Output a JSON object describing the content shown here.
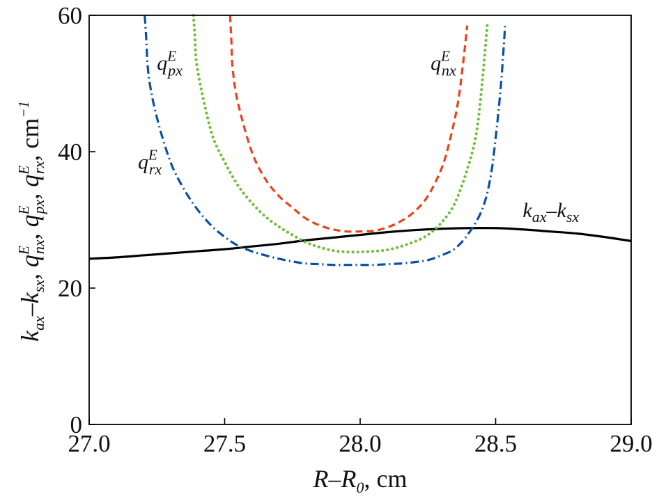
{
  "chart_data": {
    "type": "line",
    "title": "",
    "xlabel": "R–R0, cm",
    "xlabel_parts": {
      "var": "R",
      "dash": "–",
      "var2": "R",
      "sub2": "0",
      "unit": ", cm"
    },
    "ylabel": "kax–ksx, qEnx, qEpx, qErx, cm−1",
    "ylabel_parts": {
      "k1": "k",
      "s1": "ax",
      "dash": "–",
      "k2": "k",
      "s2": "sx",
      "q": "q",
      "sep": ", ",
      "E": "E",
      "s3": "nx",
      "s4": "px",
      "s5": "rx",
      "unit": "cm",
      "exp": "−1"
    },
    "xlim": [
      27.0,
      29.0
    ],
    "ylim": [
      0,
      60
    ],
    "x_ticks": [
      "27.0",
      "27.5",
      "28.0",
      "28.5",
      "29.0"
    ],
    "y_ticks": [
      "0",
      "20",
      "40",
      "60"
    ],
    "grid": false,
    "series": [
      {
        "name": "kax–ksx",
        "color": "#000000",
        "style": "solid",
        "x": [
          27.0,
          27.1,
          27.2,
          27.3,
          27.4,
          27.5,
          27.6,
          27.7,
          27.8,
          27.9,
          28.0,
          28.1,
          28.2,
          28.3,
          28.4,
          28.5,
          28.6,
          28.7,
          28.8,
          28.9,
          29.0
        ],
        "y": [
          24.3,
          24.5,
          24.8,
          25.1,
          25.4,
          25.7,
          26.1,
          26.5,
          27.0,
          27.4,
          27.8,
          28.2,
          28.5,
          28.7,
          28.8,
          28.8,
          28.6,
          28.3,
          28.0,
          27.5,
          26.9
        ]
      },
      {
        "name": "qEnx",
        "color": "#e8431c",
        "style": "dashed",
        "x": [
          27.52,
          27.525,
          27.53,
          27.55,
          27.6,
          27.65,
          27.7,
          27.75,
          27.8,
          27.85,
          27.9,
          27.95,
          28.0,
          28.05,
          28.1,
          28.15,
          28.2,
          28.25,
          28.3,
          28.33,
          28.36,
          28.38,
          28.395
        ],
        "y": [
          60,
          56,
          52,
          47,
          40,
          36,
          33.5,
          31.8,
          30.2,
          29.2,
          28.6,
          28.3,
          28.3,
          28.4,
          28.9,
          29.8,
          31.2,
          33.5,
          37.5,
          41.5,
          47,
          53,
          58.5
        ]
      },
      {
        "name": "qEpx",
        "color": "#6fbe3b",
        "style": "dotted",
        "x": [
          27.385,
          27.39,
          27.4,
          27.45,
          27.5,
          27.55,
          27.6,
          27.65,
          27.7,
          27.75,
          27.8,
          27.85,
          27.9,
          27.95,
          28.0,
          28.05,
          28.1,
          28.15,
          28.2,
          28.25,
          28.3,
          28.35,
          28.4,
          28.43,
          28.45,
          28.47
        ],
        "y": [
          60,
          57,
          52,
          43,
          38.5,
          35,
          32.5,
          30.5,
          29,
          27.8,
          26.7,
          26,
          25.5,
          25.3,
          25.3,
          25.4,
          25.6,
          26.1,
          26.8,
          27.8,
          29.6,
          32.5,
          38,
          43,
          50,
          59
        ]
      },
      {
        "name": "qErx",
        "color": "#0a4ea8",
        "style": "dashdot",
        "x": [
          27.205,
          27.21,
          27.22,
          27.25,
          27.3,
          27.35,
          27.4,
          27.45,
          27.5,
          27.55,
          27.6,
          27.65,
          27.7,
          27.75,
          27.8,
          27.85,
          27.9,
          27.95,
          28.0,
          28.05,
          28.1,
          28.15,
          28.2,
          28.25,
          28.3,
          28.35,
          28.4,
          28.45,
          28.48,
          28.5,
          28.52,
          28.535
        ],
        "y": [
          60,
          57,
          51,
          45,
          38.5,
          34.5,
          31.5,
          29.2,
          27.5,
          26.2,
          25.4,
          24.8,
          24.3,
          23.9,
          23.6,
          23.5,
          23.4,
          23.4,
          23.4,
          23.4,
          23.5,
          23.6,
          23.8,
          24.1,
          24.8,
          25.8,
          28,
          31.5,
          36,
          42,
          50,
          58.5
        ]
      }
    ],
    "annotations": [
      {
        "series": "qErx",
        "q": "q",
        "sup": "E",
        "sub": "rx",
        "at": [
          27.18,
          37.5
        ]
      },
      {
        "series": "qEpx",
        "q": "q",
        "sup": "E",
        "sub": "px",
        "at": [
          27.25,
          52.0
        ]
      },
      {
        "series": "qEnx",
        "q": "q",
        "sup": "E",
        "sub": "nx",
        "at": [
          28.26,
          52.0
        ]
      },
      {
        "series": "kax–ksx",
        "k1": "k",
        "s1": "ax",
        "dash": "–",
        "k2": "k",
        "s2": "sx",
        "at": [
          28.6,
          30.4
        ]
      }
    ]
  }
}
